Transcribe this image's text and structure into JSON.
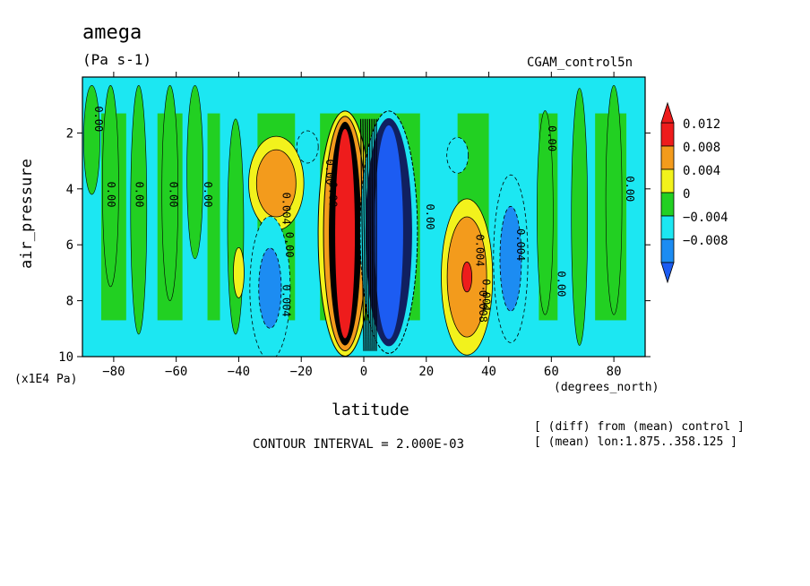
{
  "chart_data": {
    "type": "heatmap",
    "title": "amega",
    "units": "(Pa s-1)",
    "run_label": "CGAM_control5n",
    "xlabel": "latitude",
    "x_units": "(degrees_north)",
    "ylabel": "air_pressure",
    "y_units": "(x1E4 Pa)",
    "contour_interval_text": "CONTOUR INTERVAL = 2.000E-03",
    "notes": [
      "[ (diff) from (mean) control ]",
      "[ (mean) lon:1.875..358.125 ]"
    ],
    "xlim": [
      -90,
      90
    ],
    "ylim": [
      10,
      0
    ],
    "x_ticks": [
      -80,
      -60,
      -40,
      -20,
      0,
      20,
      40,
      60,
      80
    ],
    "y_ticks": [
      2,
      4,
      6,
      8,
      10
    ],
    "colorbar": {
      "levels": [
        0.012,
        0.008,
        0.004,
        0,
        -0.004,
        -0.008
      ],
      "level_labels": [
        "0.012",
        "0.008",
        "0.004",
        "0",
        "−0.004",
        "−0.008"
      ],
      "bands": [
        {
          "range": [
            0.01,
            0.012
          ],
          "color": "#ee1c1c"
        },
        {
          "range": [
            0.006,
            0.01
          ],
          "color": "#f39b1c"
        },
        {
          "range": [
            0.002,
            0.006
          ],
          "color": "#f2f21c"
        },
        {
          "range": [
            -0.002,
            0.002
          ],
          "color": "#22d022"
        },
        {
          "range": [
            -0.006,
            -0.002
          ],
          "color": "#1ce7f2"
        },
        {
          "range": [
            -0.01,
            -0.006
          ],
          "color": "#1c8cf2"
        }
      ],
      "background_color": "#22d022",
      "overflow_high_color": "#ee1c1c",
      "overflow_low_color": "#1c5cf2"
    },
    "features": [
      {
        "name": "ascending core (strong positive)",
        "lat": -6,
        "p_top": 1.6,
        "p_bottom": 9.6,
        "value": 0.012,
        "color": "#ee1c1c"
      },
      {
        "name": "descending core (strong negative)",
        "lat": 8,
        "p_top": 1.6,
        "p_bottom": 9.5,
        "value": -0.012,
        "color": "#1c5cf2"
      },
      {
        "name": "positive lobe south",
        "lat": -28,
        "p_top": 2.6,
        "p_bottom": 5.0,
        "value": 0.008,
        "color": "#f39b1c"
      },
      {
        "name": "positive lobe north",
        "lat": 33,
        "p_top": 5.0,
        "p_bottom": 9.3,
        "value": 0.008,
        "color": "#f39b1c"
      },
      {
        "name": "negative lobe south",
        "lat": -30,
        "p_top": 5.5,
        "p_bottom": 9.6,
        "value": -0.006,
        "color": "#1c8cf2"
      },
      {
        "name": "negative lobe north",
        "lat": 47,
        "p_top": 4.0,
        "p_bottom": 9.0,
        "value": -0.006,
        "color": "#1c8cf2"
      }
    ],
    "contour_labels": [
      {
        "text": "0.00",
        "lat": -86,
        "p": 1.5
      },
      {
        "text": "0.00",
        "lat": -82,
        "p": 4.2
      },
      {
        "text": "0.00",
        "lat": -73,
        "p": 4.2
      },
      {
        "text": "0.00",
        "lat": -62,
        "p": 4.2
      },
      {
        "text": "0.00",
        "lat": -51,
        "p": 4.2
      },
      {
        "text": "0.004",
        "lat": -26,
        "p": 4.7
      },
      {
        "text": "0.00",
        "lat": -25,
        "p": 6.0
      },
      {
        "text": "0.004",
        "lat": -26,
        "p": 8.0
      },
      {
        "text": "0.00",
        "lat": -12,
        "p": 3.4
      },
      {
        "text": "0.00",
        "lat": -11,
        "p": 4.2
      },
      {
        "text": "0.00",
        "lat": 20,
        "p": 5.0
      },
      {
        "text": "0.004",
        "lat": 36,
        "p": 6.2
      },
      {
        "text": "0.004",
        "lat": 38,
        "p": 7.8
      },
      {
        "text": "0.008",
        "lat": 37,
        "p": 8.2
      },
      {
        "text": "0.004",
        "lat": 49,
        "p": 6.0
      },
      {
        "text": "0.00",
        "lat": 59,
        "p": 2.2
      },
      {
        "text": "0.00",
        "lat": 62,
        "p": 7.4
      },
      {
        "text": "0.00",
        "lat": 84,
        "p": 4.0
      }
    ]
  }
}
